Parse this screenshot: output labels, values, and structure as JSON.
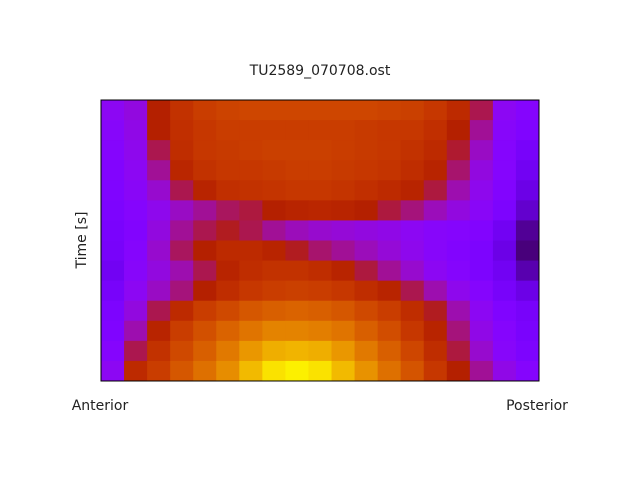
{
  "chart_data": {
    "type": "heatmap",
    "title": "TU2589_070708.ost",
    "y_label": "Time [s]",
    "x_labels": [
      "Anterior",
      "Posterior"
    ],
    "colormap": "gnuplot",
    "values": [
      [
        0.3,
        0.33,
        0.5,
        0.58,
        0.62,
        0.64,
        0.65,
        0.65,
        0.65,
        0.65,
        0.65,
        0.65,
        0.64,
        0.63,
        0.6,
        0.55,
        0.45,
        0.3,
        0.27
      ],
      [
        0.28,
        0.32,
        0.5,
        0.57,
        0.6,
        0.62,
        0.62,
        0.62,
        0.62,
        0.62,
        0.62,
        0.61,
        0.6,
        0.6,
        0.57,
        0.5,
        0.4,
        0.28,
        0.25
      ],
      [
        0.27,
        0.31,
        0.45,
        0.56,
        0.6,
        0.61,
        0.62,
        0.63,
        0.63,
        0.63,
        0.62,
        0.61,
        0.6,
        0.58,
        0.55,
        0.47,
        0.36,
        0.27,
        0.22
      ],
      [
        0.26,
        0.3,
        0.4,
        0.53,
        0.58,
        0.6,
        0.6,
        0.61,
        0.62,
        0.62,
        0.61,
        0.6,
        0.59,
        0.56,
        0.52,
        0.43,
        0.33,
        0.27,
        0.2
      ],
      [
        0.25,
        0.29,
        0.35,
        0.45,
        0.52,
        0.57,
        0.58,
        0.59,
        0.6,
        0.6,
        0.59,
        0.57,
        0.55,
        0.52,
        0.46,
        0.38,
        0.31,
        0.26,
        0.18
      ],
      [
        0.24,
        0.27,
        0.31,
        0.36,
        0.4,
        0.44,
        0.46,
        0.5,
        0.52,
        0.53,
        0.52,
        0.5,
        0.46,
        0.42,
        0.37,
        0.33,
        0.29,
        0.24,
        0.15
      ],
      [
        0.23,
        0.26,
        0.33,
        0.4,
        0.45,
        0.48,
        0.45,
        0.4,
        0.37,
        0.35,
        0.34,
        0.33,
        0.32,
        0.3,
        0.28,
        0.27,
        0.26,
        0.2,
        0.1
      ],
      [
        0.22,
        0.27,
        0.35,
        0.44,
        0.5,
        0.55,
        0.55,
        0.52,
        0.48,
        0.43,
        0.4,
        0.37,
        0.34,
        0.31,
        0.28,
        0.26,
        0.24,
        0.18,
        0.08
      ],
      [
        0.2,
        0.28,
        0.33,
        0.38,
        0.45,
        0.52,
        0.56,
        0.58,
        0.58,
        0.56,
        0.52,
        0.46,
        0.4,
        0.35,
        0.3,
        0.27,
        0.24,
        0.2,
        0.12
      ],
      [
        0.22,
        0.3,
        0.36,
        0.42,
        0.5,
        0.56,
        0.6,
        0.62,
        0.63,
        0.62,
        0.6,
        0.56,
        0.52,
        0.45,
        0.38,
        0.31,
        0.27,
        0.22,
        0.18
      ],
      [
        0.24,
        0.33,
        0.45,
        0.55,
        0.62,
        0.66,
        0.7,
        0.72,
        0.73,
        0.72,
        0.7,
        0.66,
        0.62,
        0.56,
        0.48,
        0.38,
        0.3,
        0.25,
        0.22
      ],
      [
        0.25,
        0.38,
        0.52,
        0.62,
        0.68,
        0.73,
        0.77,
        0.8,
        0.8,
        0.79,
        0.77,
        0.72,
        0.67,
        0.6,
        0.52,
        0.42,
        0.32,
        0.27,
        0.23
      ],
      [
        0.27,
        0.45,
        0.58,
        0.66,
        0.72,
        0.78,
        0.84,
        0.88,
        0.89,
        0.88,
        0.84,
        0.78,
        0.72,
        0.65,
        0.56,
        0.46,
        0.35,
        0.28,
        0.24
      ],
      [
        0.3,
        0.55,
        0.62,
        0.7,
        0.76,
        0.82,
        0.9,
        0.96,
        0.98,
        0.96,
        0.9,
        0.83,
        0.76,
        0.69,
        0.6,
        0.5,
        0.4,
        0.32,
        0.27
      ]
    ]
  }
}
